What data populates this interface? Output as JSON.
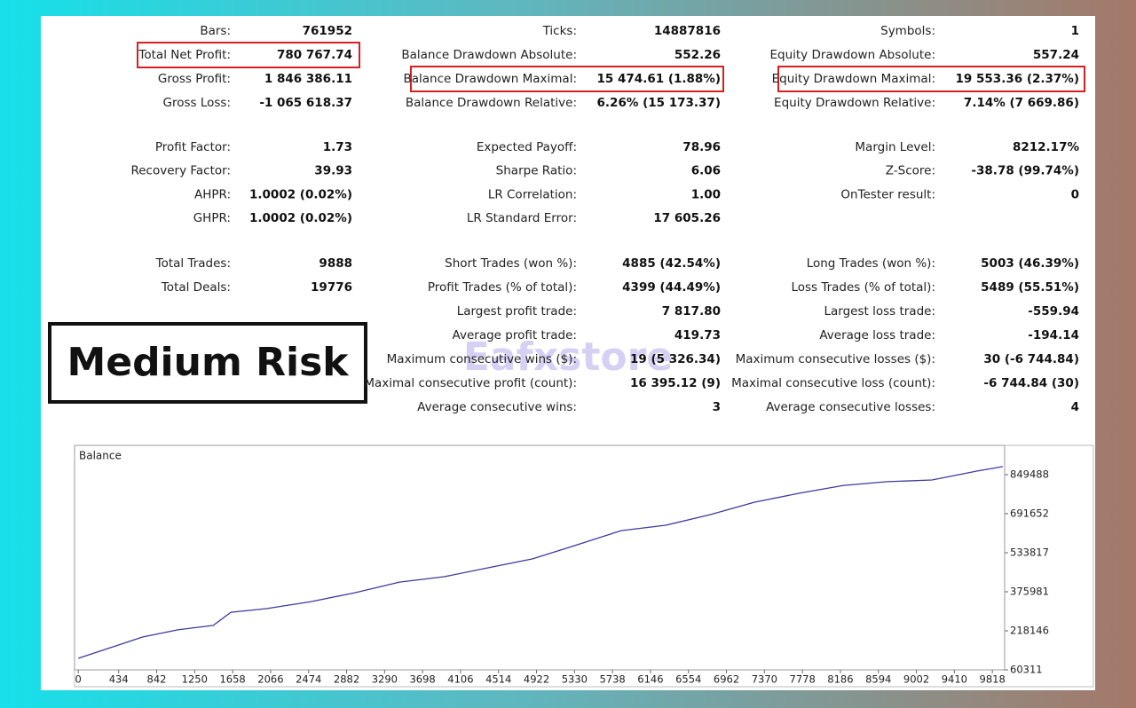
{
  "stats": {
    "rows": [
      [
        [
          "Bars:",
          "761952"
        ],
        [
          "Ticks:",
          "14887816"
        ],
        [
          "Symbols:",
          "1"
        ]
      ],
      [
        [
          "Total Net Profit:",
          "780 767.74"
        ],
        [
          "Balance Drawdown Absolute:",
          "552.26"
        ],
        [
          "Equity Drawdown Absolute:",
          "557.24"
        ]
      ],
      [
        [
          "Gross Profit:",
          "1 846 386.11"
        ],
        [
          "Balance Drawdown Maximal:",
          "15 474.61 (1.88%)"
        ],
        [
          "Equity Drawdown Maximal:",
          "19 553.36 (2.37%)"
        ]
      ],
      [
        [
          "Gross Loss:",
          "-1 065 618.37"
        ],
        [
          "Balance Drawdown Relative:",
          "6.26% (15 173.37)"
        ],
        [
          "Equity Drawdown Relative:",
          "7.14% (7 669.86)"
        ]
      ],
      [
        [
          "Profit Factor:",
          "1.73"
        ],
        [
          "Expected Payoff:",
          "78.96"
        ],
        [
          "Margin Level:",
          "8212.17%"
        ]
      ],
      [
        [
          "Recovery Factor:",
          "39.93"
        ],
        [
          "Sharpe Ratio:",
          "6.06"
        ],
        [
          "Z-Score:",
          "-38.78 (99.74%)"
        ]
      ],
      [
        [
          "AHPR:",
          "1.0002 (0.02%)"
        ],
        [
          "LR Correlation:",
          "1.00"
        ],
        [
          "OnTester result:",
          "0"
        ]
      ],
      [
        [
          "GHPR:",
          "1.0002 (0.02%)"
        ],
        [
          "LR Standard Error:",
          "17 605.26"
        ],
        null
      ],
      [
        [
          "Total Trades:",
          "9888"
        ],
        [
          "Short Trades (won %):",
          "4885 (42.54%)"
        ],
        [
          "Long Trades (won %):",
          "5003 (46.39%)"
        ]
      ],
      [
        [
          "Total Deals:",
          "19776"
        ],
        [
          "Profit Trades (% of total):",
          "4399 (44.49%)"
        ],
        [
          "Loss Trades (% of total):",
          "5489 (55.51%)"
        ]
      ],
      [
        null,
        [
          "Largest profit trade:",
          "7 817.80"
        ],
        [
          "Largest loss trade:",
          "-559.94"
        ]
      ],
      [
        null,
        [
          "Average profit trade:",
          "419.73"
        ],
        [
          "Average loss trade:",
          "-194.14"
        ]
      ],
      [
        null,
        [
          "Maximum consecutive wins ($):",
          "19 (5 326.34)"
        ],
        [
          "Maximum consecutive losses ($):",
          "30 (-6 744.84)"
        ]
      ],
      [
        null,
        [
          "Maximal consecutive profit (count):",
          "16 395.12 (9)"
        ],
        [
          "Maximal consecutive loss (count):",
          "-6 744.84 (30)"
        ]
      ],
      [
        null,
        [
          "Average consecutive wins:",
          "3"
        ],
        [
          "Average consecutive losses:",
          "4"
        ]
      ]
    ]
  },
  "badge": "Medium Risk",
  "watermark": "Eafxstore",
  "chart_data": {
    "type": "line",
    "title": "Balance",
    "color": "#3b3b9c",
    "x": [
      0,
      690,
      1070,
      1450,
      1640,
      2020,
      2500,
      2970,
      3450,
      3930,
      4400,
      4880,
      5360,
      5830,
      6310,
      6790,
      7260,
      7740,
      8220,
      8690,
      9170,
      9650,
      9930
    ],
    "values": [
      107000,
      193000,
      222000,
      240000,
      293000,
      308000,
      336000,
      372000,
      415000,
      437000,
      473000,
      509000,
      566000,
      623000,
      645000,
      688000,
      738000,
      774000,
      806000,
      821000,
      828000,
      864000,
      882000
    ],
    "xlim": [
      -40,
      9950
    ],
    "ylim": [
      60311,
      967864
    ],
    "xticks": [
      0,
      434,
      842,
      1250,
      1658,
      2066,
      2474,
      2882,
      3290,
      3698,
      4106,
      4514,
      4922,
      5330,
      5738,
      6146,
      6554,
      6962,
      7370,
      7778,
      8186,
      8594,
      9002,
      9410,
      9818
    ],
    "yticks": [
      60311,
      218146,
      375981,
      533817,
      691652,
      849488
    ]
  }
}
